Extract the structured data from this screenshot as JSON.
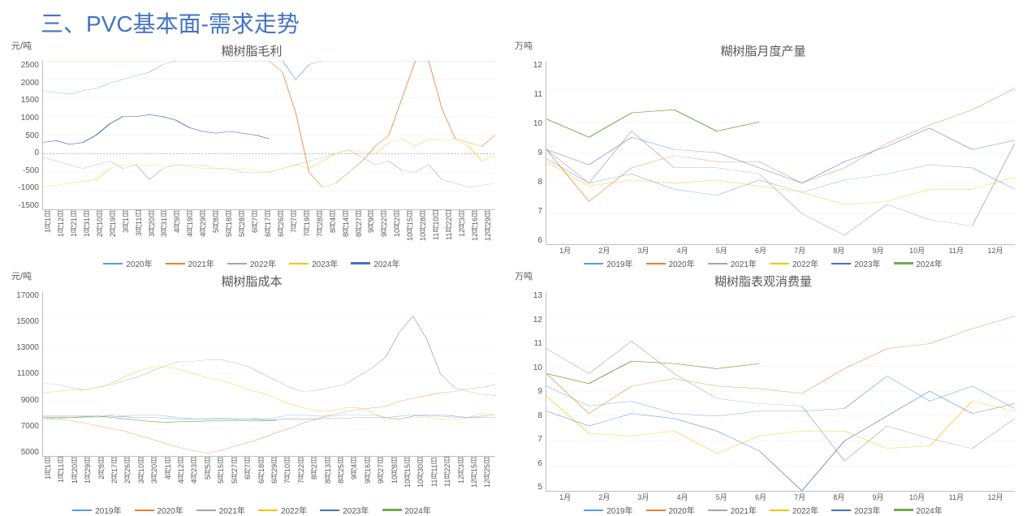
{
  "page_title": "三、PVC基本面-需求走势",
  "colors": {
    "2019": "#5b9bd5",
    "2020_light": "#5b9bd5",
    "2020_orange": "#ed7d31",
    "2021": "#ed7d31",
    "2021_gray": "#a5a5a5",
    "2022": "#a5a5a5",
    "2022_yellow": "#ffc000",
    "2023": "#ffc000",
    "2023_blue": "#4472c4",
    "2024": "#4472c4",
    "2024_green": "#70ad47",
    "grid": "#e0e0e0",
    "text": "#595959"
  },
  "charts": {
    "margin": {
      "title": "糊树脂毛利",
      "y_unit": "元/吨",
      "ymin": -1500,
      "ymax": 2500,
      "ystep": 500,
      "x_labels": [
        "1月1日",
        "1月12日",
        "1月21日",
        "1月31日",
        "2月10日",
        "2月19日",
        "3月1日",
        "3月11日",
        "3月20日",
        "3月31日",
        "4月9日",
        "4月19日",
        "4月29日",
        "5月8日",
        "5月18日",
        "5月28日",
        "6月7日",
        "6月17日",
        "6月26日",
        "7月7日",
        "7月19日",
        "7月28日",
        "8月4日",
        "8月14日",
        "8月27日",
        "9月9日",
        "9月22日",
        "10月2日",
        "10月15日",
        "10月28日",
        "11月10日",
        "11月22日",
        "12月3日",
        "12月16日",
        "12月29日"
      ],
      "legend": [
        {
          "label": "2020年",
          "color": "#5b9bd5",
          "thick": false
        },
        {
          "label": "2021年",
          "color": "#ed7d31",
          "thick": false
        },
        {
          "label": "2022年",
          "color": "#a5a5a5",
          "thick": false
        },
        {
          "label": "2023年",
          "color": "#ffc000",
          "thick": false
        },
        {
          "label": "2024年",
          "color": "#4472c4",
          "thick": true
        }
      ],
      "series": {
        "2020": {
          "color": "#5b9bd5",
          "thick": false,
          "data": [
            1700,
            1650,
            1600,
            1700,
            1750,
            1900,
            2000,
            2100,
            2200,
            2400,
            2500,
            2500,
            2500,
            2500,
            2500,
            2500,
            2500,
            2500,
            2500,
            2000,
            2400,
            2500,
            2500,
            2500,
            2500,
            2500,
            2500,
            2500,
            2500,
            2500,
            2500,
            2500,
            2500,
            2500,
            2500
          ]
        },
        "2021": {
          "color": "#ed7d31",
          "thick": false,
          "data": [
            2500,
            2500,
            2500,
            2500,
            2500,
            2500,
            2500,
            2500,
            2500,
            2500,
            2500,
            2500,
            2500,
            2500,
            2500,
            2500,
            2500,
            2500,
            2200,
            1100,
            -500,
            -900,
            -800,
            -500,
            -200,
            200,
            500,
            1500,
            2500,
            2500,
            1200,
            400,
            300,
            200,
            500
          ]
        },
        "2022": {
          "color": "#a5a5a5",
          "thick": false,
          "data": [
            -100,
            -200,
            -300,
            -400,
            -300,
            -200,
            -400,
            -300,
            -700,
            -400,
            -300,
            -300,
            -300,
            -400,
            -400,
            -500,
            -500,
            -500,
            -400,
            -300,
            -200,
            -100,
            0,
            100,
            -100,
            -300,
            -200,
            -450,
            -500,
            -300,
            -700,
            -800,
            -900,
            -850,
            -800
          ]
        },
        "2023": {
          "color": "#ffc000",
          "thick": false,
          "data": [
            -900,
            -850,
            -800,
            -750,
            -700,
            -400,
            -300,
            -300,
            -300,
            -350,
            -300,
            -350,
            -400,
            -400,
            -450,
            -400,
            -450,
            -500,
            -400,
            -300,
            -400,
            -200,
            0,
            100,
            50,
            0,
            300,
            400,
            200,
            400,
            350,
            400,
            200,
            -200,
            -50
          ]
        },
        "2024": {
          "color": "#4472c4",
          "thick": true,
          "data": [
            300,
            350,
            250,
            300,
            500,
            800,
            1000,
            1000,
            1050,
            1000,
            900,
            700,
            600,
            550,
            600,
            550,
            500,
            400,
            null,
            null,
            null,
            null,
            null,
            null,
            null,
            null,
            null,
            null,
            null,
            null,
            null,
            null,
            null,
            null,
            null
          ]
        }
      }
    },
    "production": {
      "title": "糊树脂月度产量",
      "y_unit": "万吨",
      "ymin": 6,
      "ymax": 12,
      "ystep": 1,
      "x_labels": [
        "1月",
        "2月",
        "3月",
        "4月",
        "5月",
        "6月",
        "7月",
        "8月",
        "9月",
        "10月",
        "11月",
        "12月"
      ],
      "legend": [
        {
          "label": "2019年",
          "color": "#5b9bd5",
          "thick": false
        },
        {
          "label": "2020年",
          "color": "#ed7d31",
          "thick": false
        },
        {
          "label": "2021年",
          "color": "#a5a5a5",
          "thick": false
        },
        {
          "label": "2022年",
          "color": "#ffc000",
          "thick": false
        },
        {
          "label": "2023年",
          "color": "#4472c4",
          "thick": false
        },
        {
          "label": "2024年",
          "color": "#70ad47",
          "thick": true
        }
      ],
      "series": {
        "2019": {
          "color": "#5b9bd5",
          "thick": false,
          "data": [
            8.8,
            8.0,
            8.3,
            7.8,
            7.6,
            8.1,
            7.7,
            8.1,
            8.3,
            8.6,
            8.5,
            7.8
          ]
        },
        "2020": {
          "color": "#ed7d31",
          "thick": false,
          "data": [
            9.1,
            7.4,
            8.5,
            8.9,
            8.7,
            8.7,
            8.0,
            8.5,
            9.3,
            9.9,
            10.4,
            11.1
          ]
        },
        "2021": {
          "color": "#a5a5a5",
          "thick": false,
          "data": [
            9.1,
            8.0,
            9.7,
            8.5,
            8.5,
            8.3,
            7.0,
            6.3,
            7.3,
            6.8,
            6.6,
            9.3
          ]
        },
        "2022": {
          "color": "#ffc000",
          "thick": false,
          "data": [
            8.7,
            7.9,
            8.1,
            8.0,
            8.1,
            7.9,
            7.7,
            7.3,
            7.4,
            7.8,
            7.8,
            8.2
          ]
        },
        "2023": {
          "color": "#4472c4",
          "thick": false,
          "data": [
            9.1,
            8.6,
            9.5,
            9.1,
            9.0,
            8.5,
            8.0,
            8.7,
            9.2,
            9.8,
            9.1,
            9.4
          ]
        },
        "2024": {
          "color": "#70ad47",
          "thick": true,
          "data": [
            10.1,
            9.5,
            10.3,
            10.4,
            9.7,
            10.0,
            null,
            null,
            null,
            null,
            null,
            null
          ]
        }
      }
    },
    "cost": {
      "title": "糊树脂成本",
      "y_unit": "元/吨",
      "ymin": 5000,
      "ymax": 17000,
      "ystep": 2000,
      "x_labels": [
        "1月1日",
        "1月11日",
        "1月20日",
        "1月29日",
        "2月8日",
        "2月17日",
        "2月26日",
        "3月10日",
        "3月20日",
        "4月1日",
        "4月12日",
        "4月23日",
        "5月5日",
        "5月15日",
        "5月27日",
        "6月7日",
        "6月18日",
        "6月29日",
        "7月10日",
        "7月22日",
        "8月2日",
        "8月13日",
        "8月25日",
        "9月4日",
        "9月16日",
        "9月27日",
        "10月8日",
        "10月15日",
        "10月30日",
        "11月11日",
        "11月22日",
        "12月3日",
        "12月15日",
        "12月25日"
      ],
      "legend": [
        {
          "label": "2019年",
          "color": "#5b9bd5",
          "thick": false
        },
        {
          "label": "2020年",
          "color": "#ed7d31",
          "thick": false
        },
        {
          "label": "2021年",
          "color": "#a5a5a5",
          "thick": false
        },
        {
          "label": "2022年",
          "color": "#ffc000",
          "thick": false
        },
        {
          "label": "2023年",
          "color": "#4472c4",
          "thick": false
        },
        {
          "label": "2024年",
          "color": "#70ad47",
          "thick": true
        }
      ],
      "series": {
        "2019": {
          "color": "#5b9bd5",
          "thick": false,
          "data": [
            7700,
            7700,
            7800,
            7800,
            7800,
            8000,
            7900,
            8000,
            8000,
            7900,
            7800,
            7700,
            7700,
            7700,
            7700,
            7700,
            7700,
            7800,
            8000,
            8000,
            7900,
            7900,
            8000,
            8000,
            8000,
            7800,
            7900,
            8000,
            7900,
            7900,
            7800,
            7800,
            7900,
            8000
          ]
        },
        "2020": {
          "color": "#ed7d31",
          "thick": false,
          "data": [
            7800,
            7700,
            7600,
            7400,
            7200,
            7000,
            6800,
            6500,
            6200,
            5900,
            5600,
            5400,
            5200,
            5400,
            5700,
            6000,
            6300,
            6700,
            7000,
            7400,
            7700,
            8000,
            8200,
            8400,
            8500,
            8600,
            9000,
            9200,
            9400,
            9600,
            9700,
            9900,
            10000,
            10200
          ]
        },
        "2021": {
          "color": "#a5a5a5",
          "thick": false,
          "data": [
            10300,
            10200,
            10000,
            9800,
            10000,
            10200,
            10500,
            10800,
            11200,
            11600,
            11900,
            11900,
            12000,
            12000,
            11800,
            11500,
            11000,
            10500,
            10000,
            9700,
            9800,
            10000,
            10200,
            10800,
            11400,
            12200,
            14000,
            15200,
            13500,
            11000,
            10000,
            9700,
            9500,
            9400
          ]
        },
        "2022": {
          "color": "#ffc000",
          "thick": false,
          "data": [
            9600,
            9700,
            9800,
            9800,
            10000,
            10300,
            10800,
            11200,
            11500,
            11500,
            11300,
            11000,
            10700,
            10500,
            10200,
            9800,
            9600,
            9200,
            8800,
            8500,
            8300,
            8300,
            8500,
            8500,
            8200,
            7700,
            7600,
            7800,
            7800,
            7700,
            7600,
            7800,
            8100,
            8000
          ]
        },
        "2023": {
          "color": "#4472c4",
          "thick": false,
          "data": [
            7900,
            7900,
            7900,
            7900,
            7900,
            7900,
            7850,
            7800,
            7800,
            7750,
            7700,
            7700,
            7700,
            7750,
            7700,
            7700,
            7650,
            7650,
            7700,
            7700,
            7700,
            7750,
            7750,
            7800,
            7800,
            7800,
            7700,
            7900,
            8000,
            8000,
            7900,
            7800,
            7800,
            7800
          ]
        },
        "2024": {
          "color": "#70ad47",
          "thick": true,
          "data": [
            7800,
            7800,
            7800,
            7850,
            7900,
            7800,
            7700,
            7600,
            7500,
            7450,
            7500,
            7500,
            7550,
            7550,
            7600,
            7550,
            7550,
            7600,
            null,
            null,
            null,
            null,
            null,
            null,
            null,
            null,
            null,
            null,
            null,
            null,
            null,
            null,
            null,
            null
          ]
        }
      }
    },
    "consumption": {
      "title": "糊树脂表观消费量",
      "y_unit": "万吨",
      "ymin": 5,
      "ymax": 13,
      "ystep": 1,
      "x_labels": [
        "1月",
        "2月",
        "3月",
        "4月",
        "5月",
        "6月",
        "7月",
        "8月",
        "9月",
        "10月",
        "11月",
        "12月"
      ],
      "legend": [
        {
          "label": "2019年",
          "color": "#5b9bd5",
          "thick": false
        },
        {
          "label": "2020年",
          "color": "#ed7d31",
          "thick": false
        },
        {
          "label": "2021年",
          "color": "#a5a5a5",
          "thick": false
        },
        {
          "label": "2022年",
          "color": "#ffc000",
          "thick": false
        },
        {
          "label": "2023年",
          "color": "#4472c4",
          "thick": false
        },
        {
          "label": "2024年",
          "color": "#70ad47",
          "thick": true
        }
      ],
      "series": {
        "2019": {
          "color": "#5b9bd5",
          "thick": false,
          "data": [
            9.2,
            8.4,
            8.6,
            8.1,
            8.0,
            8.2,
            8.2,
            8.3,
            9.6,
            8.6,
            9.2,
            8.3
          ]
        },
        "2020": {
          "color": "#ed7d31",
          "thick": false,
          "data": [
            9.7,
            8.1,
            9.2,
            9.5,
            9.2,
            9.1,
            8.9,
            9.9,
            10.7,
            10.9,
            11.5,
            12.0
          ]
        },
        "2021": {
          "color": "#a5a5a5",
          "thick": false,
          "data": [
            10.7,
            9.7,
            11.0,
            9.7,
            8.7,
            8.5,
            8.4,
            6.2,
            7.6,
            7.1,
            6.7,
            7.9
          ]
        },
        "2022": {
          "color": "#ffc000",
          "thick": false,
          "data": [
            8.8,
            7.3,
            7.2,
            7.4,
            6.5,
            7.2,
            7.4,
            7.4,
            6.7,
            6.8,
            8.6,
            8.2
          ]
        },
        "2023": {
          "color": "#4472c4",
          "thick": false,
          "data": [
            8.2,
            7.6,
            8.1,
            7.9,
            7.4,
            6.6,
            5.0,
            7.0,
            8.0,
            9.0,
            8.1,
            8.5
          ]
        },
        "2024": {
          "color": "#70ad47",
          "thick": true,
          "data": [
            9.7,
            9.3,
            10.2,
            10.1,
            9.9,
            10.1,
            null,
            null,
            null,
            null,
            null,
            null
          ]
        }
      }
    }
  }
}
